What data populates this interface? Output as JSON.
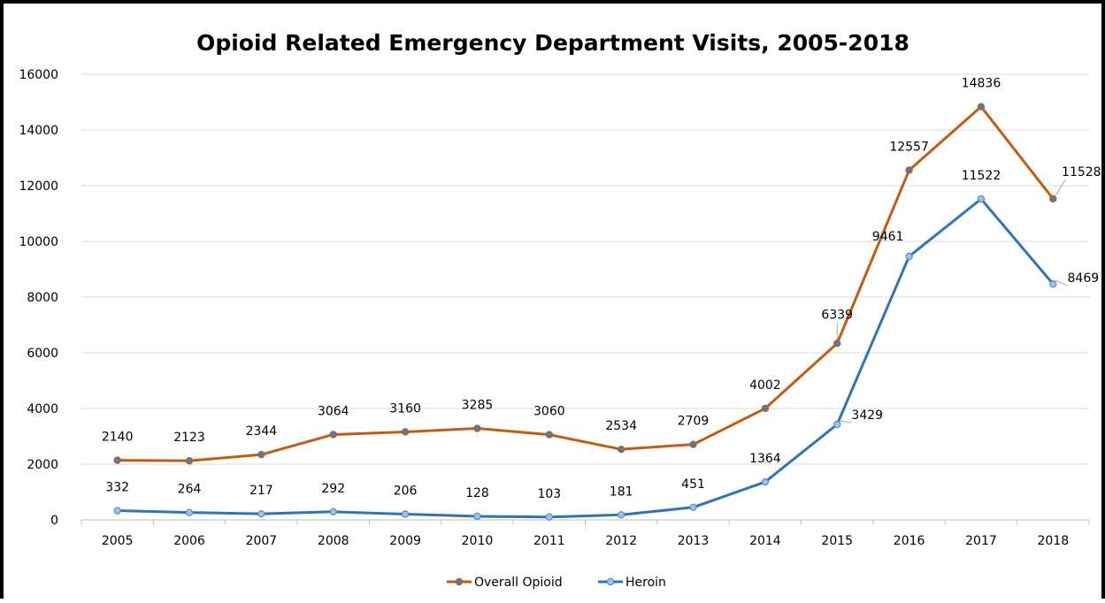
{
  "chart_data": {
    "type": "line",
    "title": "Opioid Related Emergency Department Visits, 2005-2018",
    "xlabel": "",
    "ylabel": "",
    "categories": [
      "2005",
      "2006",
      "2007",
      "2008",
      "2009",
      "2010",
      "2011",
      "2012",
      "2013",
      "2014",
      "2015",
      "2016",
      "2017",
      "2018"
    ],
    "ylim": [
      0,
      16000
    ],
    "yticks": [
      "0",
      "2000",
      "4000",
      "6000",
      "8000",
      "10000",
      "12000",
      "14000",
      "16000"
    ],
    "grid": true,
    "legend_position": "bottom",
    "series": [
      {
        "name": "Overall Opioid",
        "color": "#c55a11",
        "values": [
          2140,
          2123,
          2344,
          3064,
          3160,
          3285,
          3060,
          2534,
          2709,
          4002,
          6339,
          12557,
          14836,
          11528
        ],
        "labels": [
          "2140",
          "2123",
          "2344",
          "3064",
          "3160",
          "3285",
          "3060",
          "2534",
          "2709",
          "4002",
          "6339",
          "12557",
          "14836",
          "11528"
        ]
      },
      {
        "name": "Heroin",
        "color": "#2e75b6",
        "values": [
          332,
          264,
          217,
          292,
          206,
          128,
          103,
          181,
          451,
          1364,
          3429,
          9461,
          11522,
          8469
        ],
        "labels": [
          "332",
          "264",
          "217",
          "292",
          "206",
          "128",
          "103",
          "181",
          "451",
          "1364",
          "3429",
          "9461",
          "11522",
          "8469"
        ]
      }
    ]
  }
}
